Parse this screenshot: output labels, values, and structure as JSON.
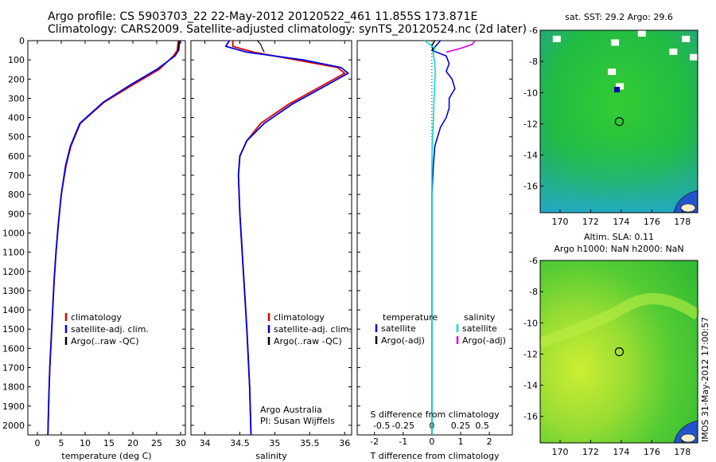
{
  "header": {
    "title_line1": "Argo profile: CS 5903703_22 22-May-2012 20120522_461 11.855S 173.871E",
    "title_line2": "Climatology: CARS2009. Satellite-adjusted climatology: synTS_20120524.nc (2d later)"
  },
  "side_text": "IMOS 31-May-2012 17:00:57",
  "colors": {
    "clim": "#dd0000",
    "sat": "#0000dd",
    "argo": "#000000",
    "sal_sat": "#00dddd",
    "sal_argo": "#dd00dd"
  },
  "chart_data": [
    {
      "type": "line",
      "xlabel": "temperature (deg C)",
      "ylabel": "",
      "xlim": [
        -2,
        31
      ],
      "ylim": [
        2050,
        0
      ],
      "xticks": [
        0,
        5,
        10,
        15,
        20,
        25,
        30
      ],
      "yticks": [
        0,
        100,
        200,
        300,
        400,
        500,
        600,
        700,
        800,
        900,
        1000,
        1100,
        1200,
        1300,
        1400,
        1500,
        1600,
        1700,
        1800,
        1900,
        2000
      ],
      "legend": [
        "climatology",
        "satellite-adj. clim.",
        "Argo(..raw -QC)"
      ],
      "legend_position": "lower-center",
      "series": [
        {
          "name": "climatology",
          "color": "#dd0000",
          "x": [
            29.5,
            29.3,
            28.5,
            25.5,
            20.0,
            14.0,
            9.0,
            7.0,
            6.0,
            5.0,
            4.4,
            3.9,
            3.5,
            3.2,
            2.9,
            2.6,
            2.4,
            2.2
          ],
          "y": [
            0,
            50,
            80,
            150,
            230,
            320,
            430,
            550,
            650,
            800,
            950,
            1100,
            1250,
            1400,
            1550,
            1700,
            1850,
            2050
          ]
        },
        {
          "name": "satellite-adj. clim.",
          "color": "#0000dd",
          "x": [
            29.8,
            29.6,
            28.8,
            25.0,
            19.5,
            13.8,
            8.9,
            6.9,
            5.9,
            5.0,
            4.4,
            3.9,
            3.5,
            3.2,
            2.9,
            2.6,
            2.4,
            2.2
          ],
          "y": [
            0,
            50,
            80,
            150,
            230,
            320,
            430,
            550,
            650,
            800,
            950,
            1100,
            1250,
            1400,
            1550,
            1700,
            1850,
            2050
          ]
        },
        {
          "name": "Argo(..raw -QC)",
          "color": "#000000",
          "x": [
            29.7,
            29.6,
            29.4
          ],
          "y": [
            0,
            30,
            60
          ]
        }
      ]
    },
    {
      "type": "line",
      "xlabel": "salinity",
      "xlim": [
        33.8,
        36.1
      ],
      "ylim": [
        2050,
        0
      ],
      "xticks": [
        34,
        34.5,
        35,
        35.5,
        36
      ],
      "legend": [
        "climatology",
        "satellite-adj. clim.",
        "Argo(..raw -QC)"
      ],
      "legend_position": "lower-center",
      "annotation": [
        "Argo Australia",
        "PI: Susan Wijffels"
      ],
      "series": [
        {
          "name": "climatology",
          "color": "#dd0000",
          "x": [
            34.4,
            34.4,
            34.7,
            35.3,
            35.9,
            36.0,
            35.7,
            35.2,
            34.8,
            34.6,
            34.5,
            34.48,
            34.5,
            34.55,
            34.6,
            34.64,
            34.66
          ],
          "y": [
            0,
            30,
            60,
            100,
            140,
            170,
            230,
            330,
            430,
            520,
            600,
            700,
            900,
            1200,
            1500,
            1800,
            2050
          ]
        },
        {
          "name": "satellite-adj. clim.",
          "color": "#0000dd",
          "x": [
            34.35,
            34.3,
            34.6,
            35.4,
            35.95,
            36.05,
            35.75,
            35.25,
            34.85,
            34.6,
            34.5,
            34.48,
            34.5,
            34.55,
            34.6,
            34.64,
            34.66
          ],
          "y": [
            0,
            30,
            60,
            100,
            140,
            170,
            230,
            330,
            430,
            520,
            600,
            700,
            900,
            1200,
            1500,
            1800,
            2050
          ]
        },
        {
          "name": "Argo(..raw -QC)",
          "color": "#000000",
          "x": [
            34.75,
            34.8,
            34.82,
            34.85
          ],
          "y": [
            0,
            20,
            40,
            60
          ]
        }
      ]
    },
    {
      "type": "line",
      "xlabel": "T difference from climatology",
      "xlabel_top": "S difference from climatology",
      "xlim": [
        -2.6,
        2.8
      ],
      "ylim": [
        2050,
        0
      ],
      "xticks": [
        -2,
        -1,
        0,
        1,
        2
      ],
      "xticks_S": [
        "-0.5",
        "-0.25",
        "0",
        "0.25",
        "0.5"
      ],
      "legend": [
        {
          "group": "temperature",
          "items": [
            "satellite",
            "Argo(-adj)"
          ]
        },
        {
          "group": "salinity",
          "items": [
            "satellite",
            "Argo(-adj)"
          ]
        }
      ],
      "series": [
        {
          "name": "satellite",
          "group": "temperature",
          "color": "#0000dd",
          "x": [
            0.3,
            0.0,
            0.5,
            0.6,
            0.5,
            0.7,
            0.8,
            0.6,
            0.6,
            0.5,
            0.3,
            0.2,
            0.1,
            0.05,
            0.0,
            0.0,
            0.0
          ],
          "y": [
            0,
            50,
            80,
            120,
            160,
            200,
            250,
            300,
            350,
            400,
            450,
            500,
            550,
            650,
            800,
            1200,
            2050
          ]
        },
        {
          "name": "Argo(-adj)",
          "group": "temperature",
          "color": "#000000",
          "x": [
            0.1,
            0.0,
            0.05
          ],
          "y": [
            0,
            25,
            60
          ]
        },
        {
          "name": "satellite",
          "group": "salinity",
          "color": "#00dddd",
          "x": [
            -0.25,
            0.1,
            0.05,
            0.1,
            0.12,
            0.1,
            0.08,
            0.06,
            0.05,
            0.03,
            0.01,
            0.0,
            0.0,
            0.0
          ],
          "y": [
            0,
            40,
            70,
            120,
            160,
            220,
            280,
            350,
            420,
            480,
            550,
            650,
            1000,
            2050
          ]
        },
        {
          "name": "Argo(-adj)",
          "group": "salinity",
          "color": "#dd00dd",
          "x": [
            1.5,
            1.4,
            1.0,
            0.5
          ],
          "y": [
            0,
            20,
            40,
            60
          ]
        }
      ]
    },
    {
      "type": "heatmap",
      "title": "sat. SST: 29.2  Argo: 29.6",
      "xlim": [
        168.7,
        179
      ],
      "ylim": [
        -17.7,
        -6
      ],
      "xticks": [
        170,
        172,
        174,
        176,
        178
      ],
      "yticks": [
        -6,
        -8,
        -10,
        -12,
        -14,
        -16
      ],
      "marker": {
        "x": 173.871,
        "y": -11.855
      }
    },
    {
      "type": "heatmap",
      "title_line1": "Altim. SLA: 0.11",
      "title_line2": "Argo h1000: NaN h2000: NaN",
      "xlim": [
        168.7,
        179
      ],
      "ylim": [
        -17.7,
        -6
      ],
      "xticks": [
        170,
        172,
        174,
        176,
        178
      ],
      "yticks": [
        -6,
        -8,
        -10,
        -12,
        -14,
        -16
      ],
      "marker": {
        "x": 173.871,
        "y": -11.855
      }
    }
  ]
}
